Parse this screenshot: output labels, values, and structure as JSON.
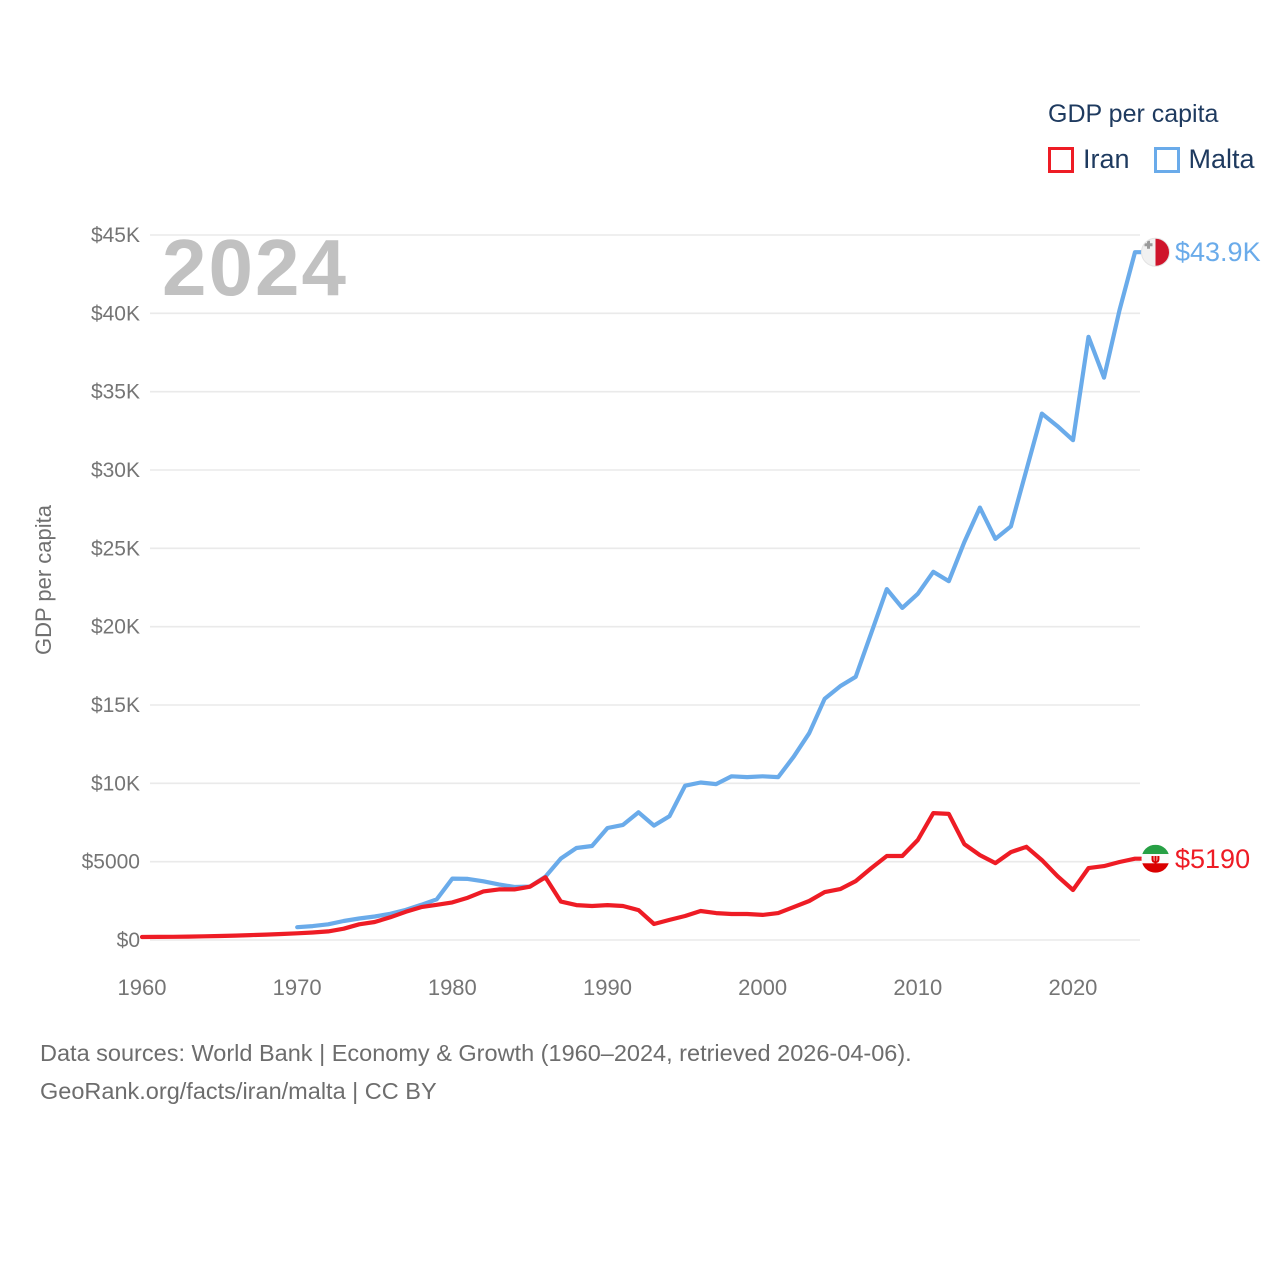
{
  "legend": {
    "title": "GDP per capita",
    "items": [
      {
        "label": "Iran",
        "color": "#ee1c25"
      },
      {
        "label": "Malta",
        "color": "#6aabea"
      }
    ]
  },
  "footer": {
    "line1": "Data sources: World Bank | Economy & Growth (1960–2024, retrieved 2026-04-06).",
    "line2": "GeoRank.org/facts/iran/malta | CC BY"
  },
  "chart_data": {
    "type": "line",
    "title": "GDP per capita",
    "ylabel": "GDP per capita",
    "watermark": "2024",
    "grid": true,
    "legend_position": "top-right",
    "x_range": [
      1960,
      2024
    ],
    "y_range": [
      0,
      45000
    ],
    "x_ticks": [
      1960,
      1970,
      1980,
      1990,
      2000,
      2010,
      2020
    ],
    "y_ticks": [
      {
        "value": 0,
        "label": "$0"
      },
      {
        "value": 5000,
        "label": "$5000"
      },
      {
        "value": 10000,
        "label": "$10K"
      },
      {
        "value": 15000,
        "label": "$15K"
      },
      {
        "value": 20000,
        "label": "$20K"
      },
      {
        "value": 25000,
        "label": "$25K"
      },
      {
        "value": 30000,
        "label": "$30K"
      },
      {
        "value": 35000,
        "label": "$35K"
      },
      {
        "value": 40000,
        "label": "$40K"
      },
      {
        "value": 45000,
        "label": "$45K"
      }
    ],
    "end_labels": {
      "malta": "$43.9K",
      "iran": "$5190"
    },
    "series": [
      {
        "name": "Malta",
        "color": "#6aabea",
        "start_year": 1970,
        "values": [
          820,
          890,
          1000,
          1210,
          1370,
          1500,
          1670,
          1920,
          2250,
          2600,
          3920,
          3900,
          3750,
          3550,
          3380,
          3410,
          4040,
          5200,
          5870,
          6000,
          7150,
          7350,
          8150,
          7300,
          7900,
          9850,
          10050,
          9950,
          10450,
          10400,
          10450,
          10400,
          11700,
          13200,
          15400,
          16200,
          16800,
          19600,
          22400,
          21200,
          22100,
          23500,
          22900,
          25400,
          27600,
          25600,
          26400,
          30000,
          33600,
          32800,
          31900,
          38500,
          35900,
          40200,
          43900
        ]
      },
      {
        "name": "Iran",
        "color": "#ee1c25",
        "start_year": 1960,
        "values": [
          190,
          195,
          205,
          215,
          235,
          255,
          280,
          310,
          345,
          385,
          430,
          480,
          550,
          720,
          1000,
          1150,
          1450,
          1800,
          2100,
          2250,
          2400,
          2700,
          3100,
          3230,
          3230,
          3400,
          4000,
          2450,
          2230,
          2170,
          2230,
          2170,
          1910,
          1020,
          1280,
          1530,
          1850,
          1720,
          1660,
          1660,
          1600,
          1720,
          2100,
          2490,
          3060,
          3250,
          3760,
          4590,
          5360,
          5360,
          6380,
          8100,
          8050,
          6120,
          5420,
          4910,
          5610,
          5950,
          5100,
          4080,
          3190,
          4590,
          4720,
          4980,
          5190
        ]
      }
    ],
    "flags": {
      "iran": {
        "green": "#27a045",
        "white": "#fbfbfb",
        "red": "#da0000",
        "emblem": "#da0000"
      },
      "malta": {
        "white": "#f1f1f1",
        "red": "#cf142b",
        "cross": "#9a9a9a"
      }
    }
  },
  "colors": {
    "grid": "#eaeaea",
    "tick_text": "#757575",
    "legend_text": "#1e3a5f",
    "watermark": "#c1c1c1",
    "footer_text": "#6d6d6d",
    "background": "#ffffff"
  }
}
